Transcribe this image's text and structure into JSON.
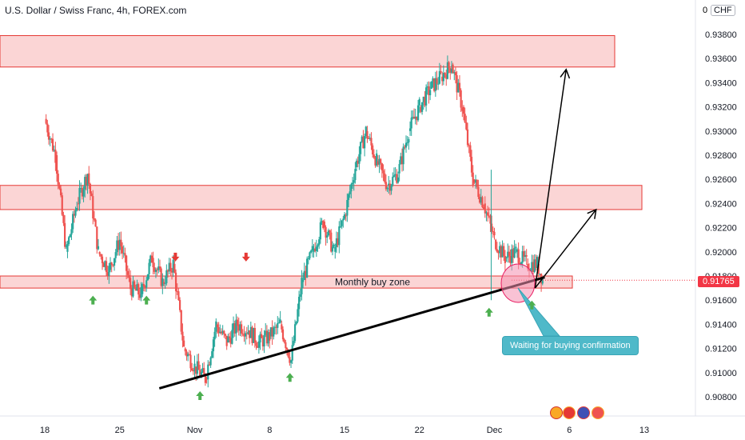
{
  "header": {
    "title": "U.S. Dollar / Swiss Franc, 4h, FOREX.com"
  },
  "currency_badge": "CHF",
  "currency_prefix": "0",
  "current_price_label": "0.91765",
  "annotations": {
    "zone_label": "Monthly buy zone",
    "callout": "Waiting for buying confirmation"
  },
  "colors": {
    "up": "#26a69a",
    "down": "#ef5350",
    "zone_fill": "#fbd5d5",
    "zone_border": "#e53935",
    "callout_bg": "#4fb9c9",
    "arrow_green": "#4caf50",
    "arrow_red": "#e53935",
    "price_tag": "#f23645"
  },
  "icons": [
    "ruler-icon",
    "target-icon",
    "flag-icon",
    "calendar-icon"
  ],
  "chart_data": {
    "type": "candlestick",
    "title": "U.S. Dollar / Swiss Franc, 4h, FOREX.com",
    "ylim": [
      0.906,
      0.9395
    ],
    "y_ticks": [
      "0.93800",
      "0.93600",
      "0.93400",
      "0.93200",
      "0.93000",
      "0.92800",
      "0.92600",
      "0.92400",
      "0.92200",
      "0.92000",
      "0.91800",
      "0.91600",
      "0.91400",
      "0.91200",
      "0.91000",
      "0.90800"
    ],
    "x_ticks": [
      "18",
      "25",
      "Nov",
      "8",
      "15",
      "22",
      "Dec",
      "6",
      "13"
    ],
    "x_tick_days": [
      0,
      7,
      14,
      21,
      28,
      35,
      42,
      49,
      56
    ],
    "zones": [
      {
        "from": 0.9353,
        "to": 0.9379
      },
      {
        "from": 0.9235,
        "to": 0.9255
      },
      {
        "from": 0.917,
        "to": 0.918,
        "label": "Monthly buy zone"
      }
    ],
    "trendline": {
      "from": {
        "day": 10.7,
        "price": 0.9087
      },
      "to": {
        "day": 46.7,
        "price": 0.9179
      }
    },
    "projections": [
      {
        "from": {
          "day": 45.8,
          "price": 0.917
        },
        "to": {
          "day": 48.7,
          "price": 0.9351
        }
      },
      {
        "from": {
          "day": 45.8,
          "price": 0.917
        },
        "to": {
          "day": 51.5,
          "price": 0.9235
        }
      }
    ],
    "buy_arrows": [
      {
        "day": 4.5,
        "price": 0.9165
      },
      {
        "day": 9.5,
        "price": 0.9165
      },
      {
        "day": 14.5,
        "price": 0.9086
      },
      {
        "day": 22.9,
        "price": 0.9101
      },
      {
        "day": 41.5,
        "price": 0.9155
      },
      {
        "day": 45.5,
        "price": 0.9161
      }
    ],
    "sell_arrows": [
      {
        "day": 12.2,
        "price": 0.9188
      },
      {
        "day": 18.8,
        "price": 0.9188
      }
    ],
    "current_price": 0.91765,
    "path": [
      [
        0,
        0.931
      ],
      [
        1,
        0.928
      ],
      [
        2,
        0.92
      ],
      [
        3,
        0.924
      ],
      [
        4,
        0.9265
      ],
      [
        5,
        0.92
      ],
      [
        6,
        0.9185
      ],
      [
        7,
        0.921
      ],
      [
        8,
        0.917
      ],
      [
        9,
        0.9165
      ],
      [
        10,
        0.9195
      ],
      [
        11,
        0.9175
      ],
      [
        12,
        0.919
      ],
      [
        13,
        0.912
      ],
      [
        14,
        0.9105
      ],
      [
        15,
        0.9095
      ],
      [
        16,
        0.914
      ],
      [
        17,
        0.9125
      ],
      [
        18,
        0.914
      ],
      [
        19,
        0.9135
      ],
      [
        20,
        0.9125
      ],
      [
        21,
        0.913
      ],
      [
        22,
        0.914
      ],
      [
        23,
        0.911
      ],
      [
        24,
        0.9175
      ],
      [
        25,
        0.92
      ],
      [
        26,
        0.9225
      ],
      [
        27,
        0.92
      ],
      [
        28,
        0.923
      ],
      [
        29,
        0.927
      ],
      [
        30,
        0.93
      ],
      [
        31,
        0.9275
      ],
      [
        32,
        0.9255
      ],
      [
        33,
        0.9265
      ],
      [
        34,
        0.93
      ],
      [
        35,
        0.932
      ],
      [
        36,
        0.9335
      ],
      [
        37,
        0.9345
      ],
      [
        38,
        0.9355
      ],
      [
        39,
        0.932
      ],
      [
        40,
        0.926
      ],
      [
        41,
        0.924
      ],
      [
        42,
        0.921
      ],
      [
        43,
        0.9195
      ],
      [
        44,
        0.92
      ],
      [
        45,
        0.919
      ],
      [
        46,
        0.919
      ],
      [
        46.5,
        0.9177
      ]
    ]
  }
}
